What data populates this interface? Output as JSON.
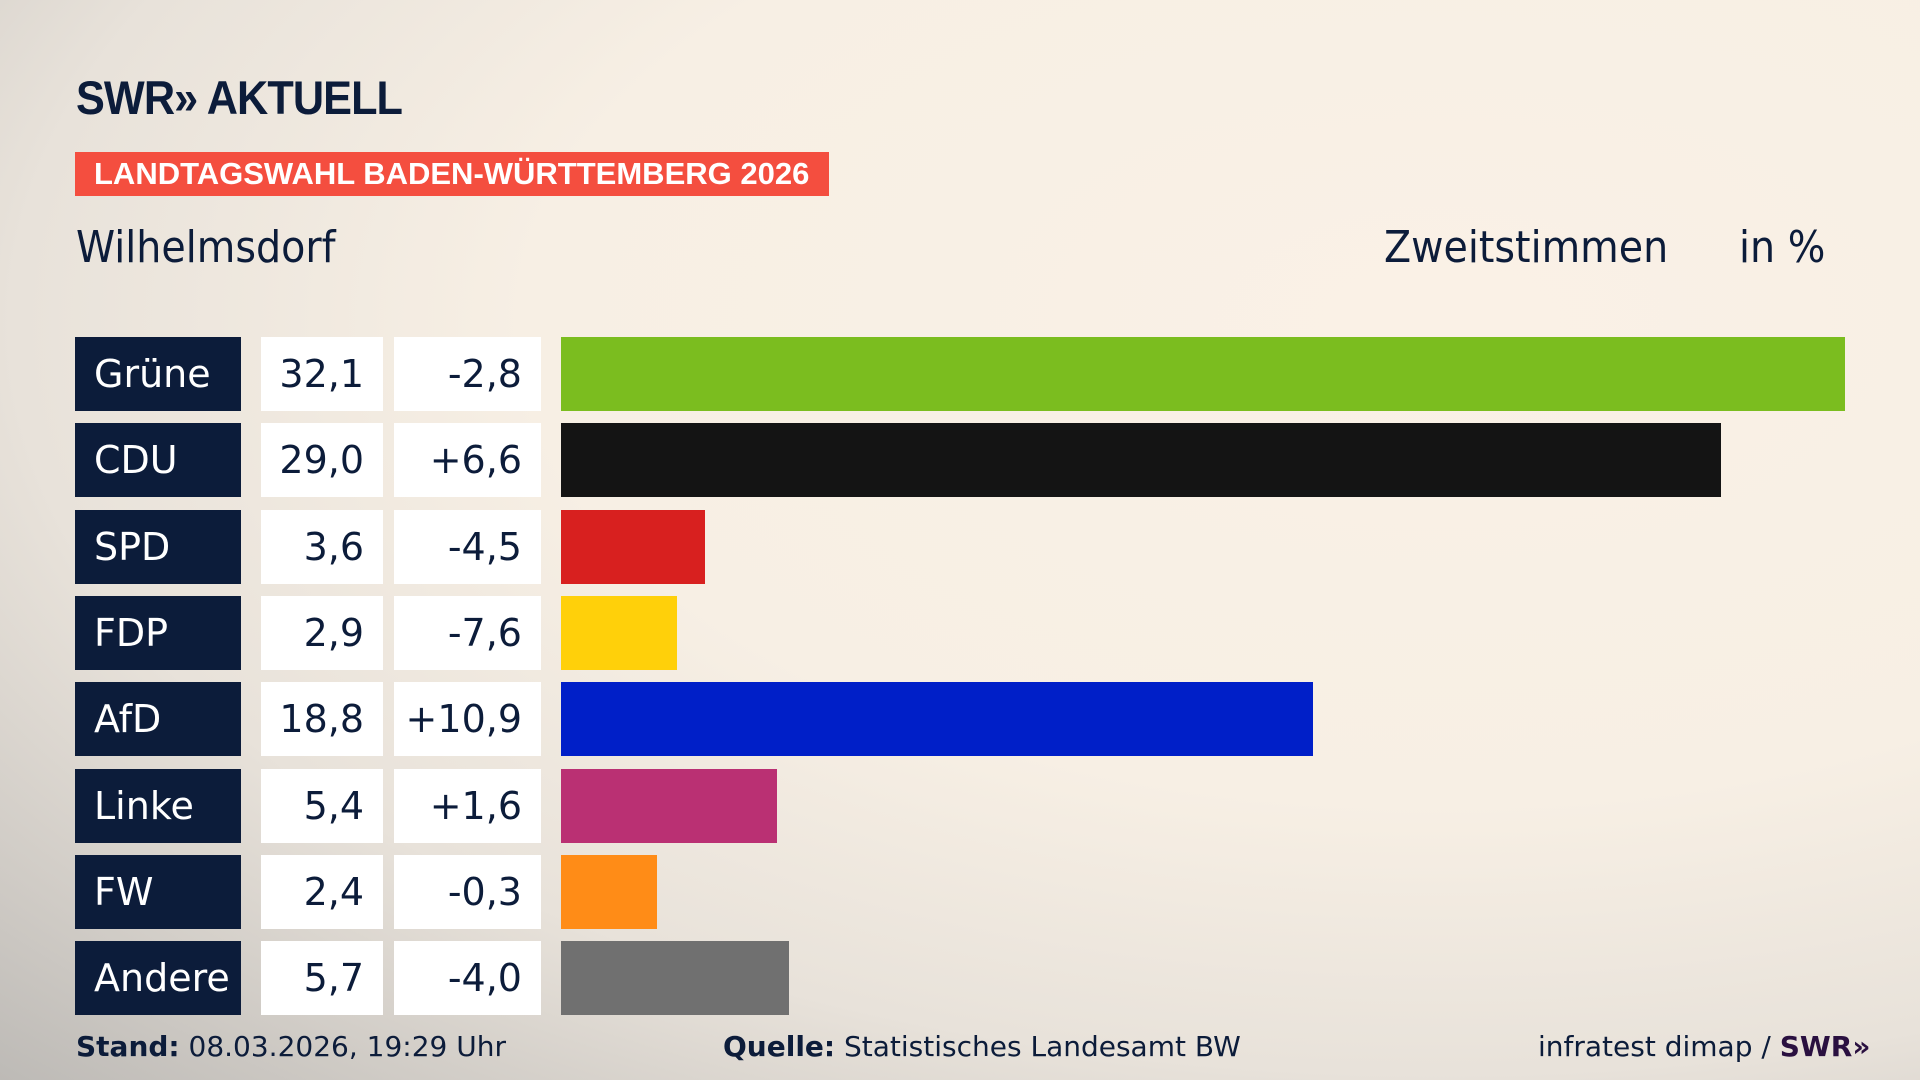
{
  "header": {
    "logo": "SWR» AKTUELL",
    "banner": "LANDTAGSWAHL BADEN-WÜRTTEMBERG 2026",
    "place": "Wilhelmsdorf",
    "vote_type": "Zweitstimmen",
    "unit": "in %"
  },
  "chart_data": {
    "type": "bar",
    "orientation": "horizontal",
    "categories": [
      "Grüne",
      "CDU",
      "SPD",
      "FDP",
      "AfD",
      "Linke",
      "FW",
      "Andere"
    ],
    "values": [
      32.1,
      29.0,
      3.6,
      2.9,
      18.8,
      5.4,
      2.4,
      5.7
    ],
    "values_label": [
      "32,1",
      "29,0",
      "3,6",
      "2,9",
      "18,8",
      "5,4",
      "2,4",
      "5,7"
    ],
    "changes": [
      "-2,8",
      "+6,6",
      "-4,5",
      "-7,6",
      "+10,9",
      "+1,6",
      "-0,3",
      "-4,0"
    ],
    "colors": [
      "#7bbd1f",
      "#141414",
      "#d8201f",
      "#ffd00a",
      "#001fc8",
      "#ba3073",
      "#ff8c17",
      "#707070"
    ],
    "xlim": [
      0,
      32.1
    ]
  },
  "footer": {
    "stand_label": "Stand:",
    "stand_value": " 08.03.2026, 19:29 Uhr",
    "source_label": "Quelle:",
    "source_value": " Statistisches Landesamt BW",
    "credit": "infratest dimap / ",
    "credit_logo": "SWR»"
  }
}
